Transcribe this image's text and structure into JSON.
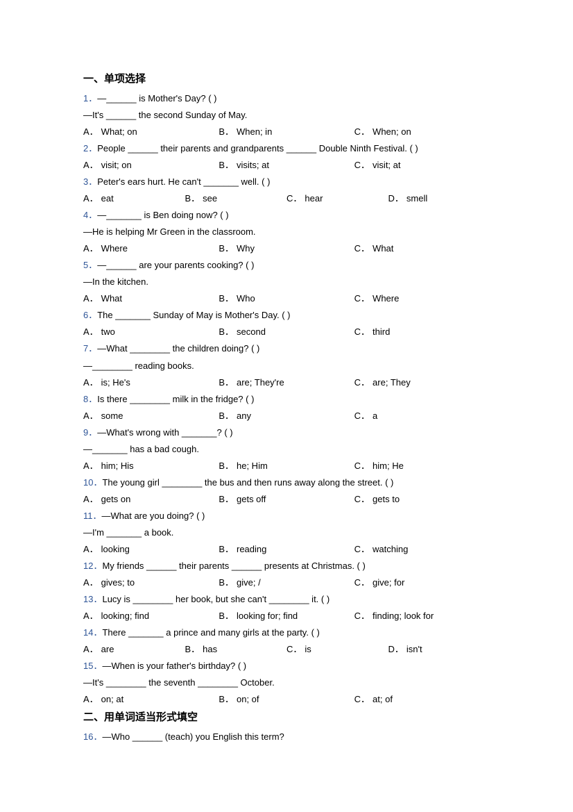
{
  "sections": {
    "s1_title": "一、单项选择",
    "s2_title": "二、用单词适当形式填空"
  },
  "q1": {
    "num": "1．",
    "l1": "—______ is Mother's Day? (    )",
    "l2": "—It's ______ the second Sunday of May.",
    "A": "What; on",
    "B": "When; in",
    "C": "When; on"
  },
  "q2": {
    "num": "2．",
    "l1": "People ______ their parents and grandparents ______ Double Ninth Festival. (     )",
    "A": "visit; on",
    "B": "visits; at",
    "C": "visit; at"
  },
  "q3": {
    "num": "3．",
    "l1": "Peter's ears hurt. He can't _______ well. (   )",
    "A": "eat",
    "B": "see",
    "C": "hear",
    "D": "smell"
  },
  "q4": {
    "num": "4．",
    "l1": "—_______ is Ben doing now? (   )",
    "l2": "—He is helping Mr Green in the classroom.",
    "A": "Where",
    "B": "Why",
    "C": "What"
  },
  "q5": {
    "num": "5．",
    "l1": "—______ are your parents cooking? (  )",
    "l2": "—In the kitchen.",
    "A": "What",
    "B": "Who",
    "C": "Where"
  },
  "q6": {
    "num": "6．",
    "l1": "The _______ Sunday of May is Mother's Day. (    )",
    "A": "two",
    "B": "second",
    "C": "third"
  },
  "q7": {
    "num": "7．",
    "l1": "—What ________ the children doing? (    )",
    "l2": "—________ reading books.",
    "A": "is; He's",
    "B": "are; They're",
    "C": "are; They"
  },
  "q8": {
    "num": "8．",
    "l1": "Is there ________ milk in the fridge? (    )",
    "A": "some",
    "B": "any",
    "C": "a"
  },
  "q9": {
    "num": "9．",
    "l1": "—What's wrong with _______? (    )",
    "l2": "—_______ has a bad cough.",
    "A": "him; His",
    "B": "he; Him",
    "C": "him; He"
  },
  "q10": {
    "num": "10．",
    "l1": "The young girl ________ the bus and then runs away along the street. (     )",
    "A": "gets on",
    "B": "gets off",
    "C": "gets to"
  },
  "q11": {
    "num": "11．",
    "l1": "—What are you doing? (        )",
    "l2": "—I'm _______ a book.",
    "A": "looking",
    "B": "reading",
    "C": "watching"
  },
  "q12": {
    "num": "12．",
    "l1": "My friends ______ their parents ______ presents at Christmas. (   )",
    "A": "gives; to",
    "B": "give; /",
    "C": "give; for"
  },
  "q13": {
    "num": "13．",
    "l1": "Lucy is ________ her book, but she can't ________ it. (   )",
    "A": "looking; find",
    "B": "looking for; find",
    "C": "finding; look for"
  },
  "q14": {
    "num": "14．",
    "l1": "There _______ a prince and many girls at the party. (   )",
    "A": "are",
    "B": "has",
    "C": "is",
    "D": "isn't"
  },
  "q15": {
    "num": "15．",
    "l1": "—When is your father's birthday? (    )",
    "l2": "—It's ________ the seventh ________ October.",
    "A": "on; at",
    "B": "on; of",
    "C": "at; of"
  },
  "q16": {
    "num": "16．",
    "l1": "—Who ______ (teach) you English this term?"
  },
  "labels": {
    "A": "A．",
    "B": "B．",
    "C": "C．",
    "D": "D．"
  },
  "colors": {
    "qnum": "#2f5597",
    "text": "#000000",
    "background": "#ffffff"
  },
  "typography": {
    "body_fontsize": 13,
    "title_fontsize": 15,
    "line_height": 1.85
  }
}
